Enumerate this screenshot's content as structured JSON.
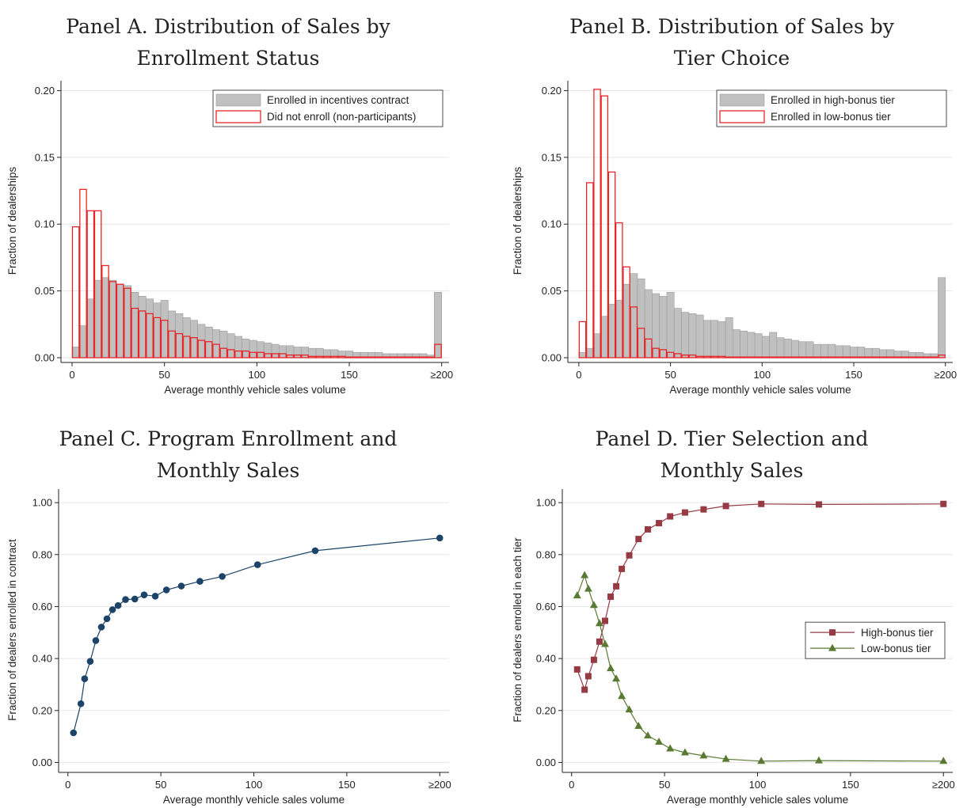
{
  "chart_data": [
    {
      "id": "A",
      "type": "bar",
      "title_lines": [
        "Panel A. Distribution of Sales by",
        "Enrollment Status"
      ],
      "xlabel": "Average monthly vehicle sales volume",
      "ylabel": "Fraction of dealerships",
      "xlim": [
        -6,
        204
      ],
      "ylim": [
        0,
        0.205
      ],
      "xticks": [
        0,
        50,
        100,
        150,
        200
      ],
      "xtick_labels": [
        "0",
        "50",
        "100",
        "150",
        "≥200"
      ],
      "yticks": [
        0,
        0.05,
        0.1,
        0.15,
        0.2
      ],
      "ytick_labels": [
        "0.00",
        "0.05",
        "0.10",
        "0.15",
        "0.20"
      ],
      "grid": true,
      "legend_position": "top-right",
      "bin_width": 4,
      "bin_starts": [
        0,
        4,
        8,
        12,
        16,
        20,
        24,
        28,
        32,
        36,
        40,
        44,
        48,
        52,
        56,
        60,
        64,
        68,
        72,
        76,
        80,
        84,
        88,
        92,
        96,
        100,
        104,
        108,
        112,
        116,
        120,
        124,
        128,
        132,
        136,
        140,
        144,
        148,
        152,
        156,
        160,
        164,
        168,
        172,
        176,
        180,
        184,
        188,
        192,
        196
      ],
      "series": [
        {
          "name": "Enrolled in incentives contract",
          "style": "filled",
          "color": "#c0c0c0",
          "values": [
            0.008,
            0.024,
            0.044,
            0.058,
            0.06,
            0.058,
            0.055,
            0.054,
            0.049,
            0.046,
            0.044,
            0.041,
            0.043,
            0.035,
            0.033,
            0.03,
            0.028,
            0.025,
            0.023,
            0.021,
            0.02,
            0.018,
            0.016,
            0.014,
            0.013,
            0.012,
            0.011,
            0.01,
            0.009,
            0.009,
            0.008,
            0.008,
            0.007,
            0.007,
            0.006,
            0.006,
            0.005,
            0.005,
            0.004,
            0.004,
            0.004,
            0.004,
            0.003,
            0.003,
            0.003,
            0.003,
            0.003,
            0.003,
            0.002,
            0.049
          ]
        },
        {
          "name": "Did not enroll (non-participants)",
          "style": "outline",
          "color": "#e8262a",
          "values": [
            0.098,
            0.126,
            0.11,
            0.11,
            0.069,
            0.057,
            0.055,
            0.052,
            0.037,
            0.035,
            0.033,
            0.03,
            0.028,
            0.02,
            0.018,
            0.016,
            0.015,
            0.013,
            0.012,
            0.01,
            0.007,
            0.006,
            0.005,
            0.005,
            0.004,
            0.004,
            0.003,
            0.003,
            0.003,
            0.002,
            0.002,
            0.002,
            0.001,
            0.001,
            0.001,
            0.001,
            0.001,
            0.0005,
            0.0005,
            0.0005,
            0.0005,
            0.0005,
            0.0005,
            0.0005,
            0.0005,
            0.0005,
            0.0005,
            0.0005,
            0.0005,
            0.01
          ]
        }
      ]
    },
    {
      "id": "B",
      "type": "bar",
      "title_lines": [
        "Panel B. Distribution of Sales by",
        "Tier Choice"
      ],
      "xlabel": "Average monthly vehicle sales volume",
      "ylabel": "Fraction of dealerships",
      "xlim": [
        -6,
        204
      ],
      "ylim": [
        0,
        0.205
      ],
      "xticks": [
        0,
        50,
        100,
        150,
        200
      ],
      "xtick_labels": [
        "0",
        "50",
        "100",
        "150",
        "≥200"
      ],
      "yticks": [
        0,
        0.05,
        0.1,
        0.15,
        0.2
      ],
      "ytick_labels": [
        "0.00",
        "0.05",
        "0.10",
        "0.15",
        "0.20"
      ],
      "grid": true,
      "legend_position": "top-right",
      "bin_width": 4,
      "bin_starts": [
        0,
        4,
        8,
        12,
        16,
        20,
        24,
        28,
        32,
        36,
        40,
        44,
        48,
        52,
        56,
        60,
        64,
        68,
        72,
        76,
        80,
        84,
        88,
        92,
        96,
        100,
        104,
        108,
        112,
        116,
        120,
        124,
        128,
        132,
        136,
        140,
        144,
        148,
        152,
        156,
        160,
        164,
        168,
        172,
        176,
        180,
        184,
        188,
        192,
        196
      ],
      "series": [
        {
          "name": "Enrolled in high-bonus tier",
          "style": "filled",
          "color": "#c0c0c0",
          "values": [
            0.004,
            0.007,
            0.018,
            0.031,
            0.04,
            0.043,
            0.055,
            0.063,
            0.059,
            0.051,
            0.048,
            0.046,
            0.049,
            0.037,
            0.034,
            0.033,
            0.032,
            0.028,
            0.028,
            0.027,
            0.03,
            0.021,
            0.02,
            0.019,
            0.018,
            0.016,
            0.019,
            0.015,
            0.014,
            0.013,
            0.012,
            0.012,
            0.01,
            0.01,
            0.01,
            0.009,
            0.009,
            0.008,
            0.008,
            0.007,
            0.007,
            0.006,
            0.006,
            0.005,
            0.005,
            0.004,
            0.004,
            0.003,
            0.003,
            0.06
          ]
        },
        {
          "name": "Enrolled in low-bonus tier",
          "style": "outline",
          "color": "#e8262a",
          "values": [
            0.027,
            0.131,
            0.201,
            0.196,
            0.139,
            0.101,
            0.068,
            0.038,
            0.022,
            0.014,
            0.007,
            0.006,
            0.004,
            0.003,
            0.002,
            0.002,
            0.001,
            0.001,
            0.001,
            0.001,
            0.0005,
            0.0005,
            0.0005,
            0.0005,
            0.0005,
            0.0005,
            0.0005,
            0.0005,
            0.0005,
            0.0005,
            0.0005,
            0.0005,
            0.0005,
            0.0005,
            0.0005,
            0.0005,
            0.0005,
            0.0005,
            0.0005,
            0.0005,
            0.0005,
            0.0005,
            0.0005,
            0.0005,
            0.0005,
            0.0005,
            0.0005,
            0.0005,
            0.0005,
            0.002
          ]
        }
      ]
    },
    {
      "id": "C",
      "type": "line",
      "title_lines": [
        "Panel C. Program Enrollment and",
        "Monthly Sales"
      ],
      "xlabel": "Average monthly vehicle sales volume",
      "ylabel": "Fraction of dealers enrolled in contract",
      "xlim": [
        -5,
        205
      ],
      "ylim": [
        -0.02,
        1.04
      ],
      "xticks": [
        0,
        50,
        100,
        150,
        200
      ],
      "xtick_labels": [
        "0",
        "50",
        "100",
        "150",
        "≥200"
      ],
      "yticks": [
        0,
        0.2,
        0.4,
        0.6,
        0.8,
        1.0
      ],
      "ytick_labels": [
        "0.00",
        "0.20",
        "0.40",
        "0.60",
        "0.80",
        "1.00"
      ],
      "grid": true,
      "series": [
        {
          "name": "",
          "color": "#1b4468",
          "marker": "circle",
          "x": [
            3,
            7,
            9,
            12,
            15,
            18,
            21,
            24,
            27,
            31,
            36,
            41,
            47,
            53,
            61,
            71,
            83,
            102,
            133,
            200
          ],
          "y": [
            0.114,
            0.226,
            0.322,
            0.389,
            0.469,
            0.521,
            0.553,
            0.588,
            0.604,
            0.627,
            0.629,
            0.645,
            0.64,
            0.664,
            0.679,
            0.697,
            0.716,
            0.761,
            0.815,
            0.864
          ]
        }
      ]
    },
    {
      "id": "D",
      "type": "line",
      "title_lines": [
        "Panel D. Tier Selection and",
        "Monthly Sales"
      ],
      "xlabel": "Average monthly vehicle sales volume",
      "ylabel": "Fraction of dealers enrolled in each tier",
      "xlim": [
        -5,
        205
      ],
      "ylim": [
        -0.02,
        1.04
      ],
      "xticks": [
        0,
        50,
        100,
        150,
        200
      ],
      "xtick_labels": [
        "0",
        "50",
        "100",
        "150",
        "≥200"
      ],
      "yticks": [
        0,
        0.2,
        0.4,
        0.6,
        0.8,
        1.0
      ],
      "ytick_labels": [
        "0.00",
        "0.20",
        "0.40",
        "0.60",
        "0.80",
        "1.00"
      ],
      "grid": true,
      "legend_position": "right",
      "series": [
        {
          "name": "High-bonus tier",
          "color": "#963b44",
          "marker": "square",
          "x": [
            3,
            7,
            9,
            12,
            15,
            18,
            21,
            24,
            27,
            31,
            36,
            41,
            47,
            53,
            61,
            71,
            83,
            102,
            133,
            200
          ],
          "y": [
            0.358,
            0.28,
            0.332,
            0.395,
            0.465,
            0.545,
            0.638,
            0.678,
            0.745,
            0.797,
            0.86,
            0.897,
            0.921,
            0.947,
            0.962,
            0.974,
            0.987,
            0.995,
            0.993,
            0.995
          ]
        },
        {
          "name": "Low-bonus tier",
          "color": "#5a7a33",
          "marker": "triangle",
          "x": [
            3,
            7,
            9,
            12,
            15,
            18,
            21,
            24,
            27,
            31,
            36,
            41,
            47,
            53,
            61,
            71,
            83,
            102,
            133,
            200
          ],
          "y": [
            0.642,
            0.72,
            0.668,
            0.605,
            0.535,
            0.455,
            0.362,
            0.322,
            0.255,
            0.203,
            0.14,
            0.103,
            0.079,
            0.053,
            0.038,
            0.026,
            0.013,
            0.005,
            0.007,
            0.005
          ]
        }
      ]
    }
  ]
}
